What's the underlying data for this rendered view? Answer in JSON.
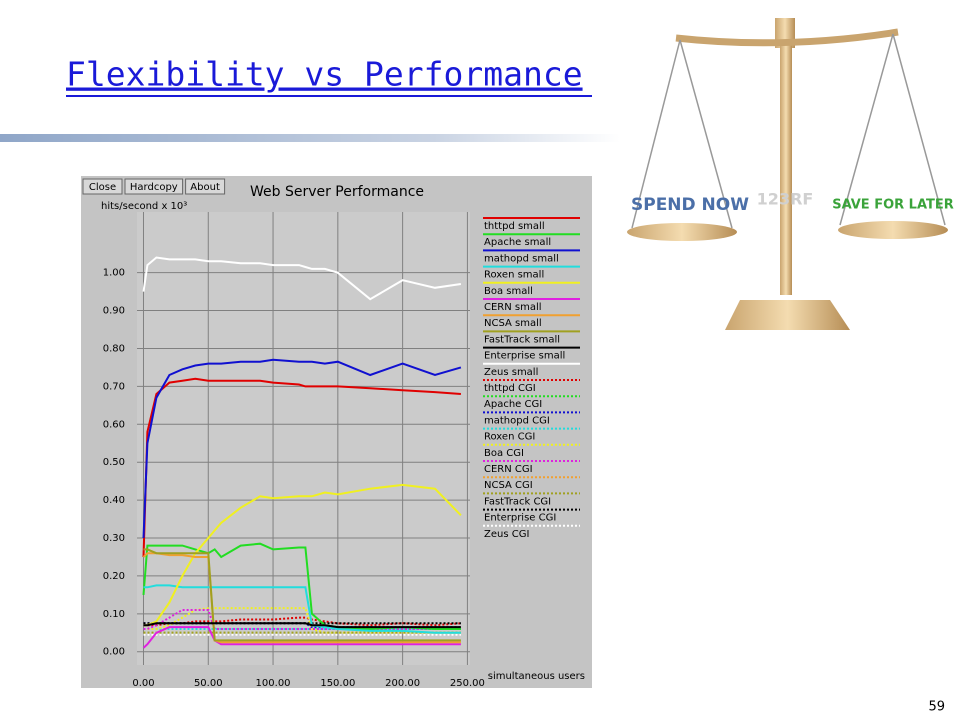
{
  "slide": {
    "title": "Flexibility vs Performance",
    "page_number": "59"
  },
  "illustration": {
    "left_text": "SPEND NOW",
    "right_text": "SAVE FOR LATER",
    "watermark": "123RF"
  },
  "buttons": [
    "Close",
    "Hardcopy",
    "About"
  ],
  "chart_data": {
    "type": "line",
    "title": "Web Server Performance",
    "ylabel": "hits/second x 10³",
    "xlabel": "simultaneous users",
    "grid": true,
    "legend": "right",
    "x": [
      0,
      3,
      10,
      20,
      30,
      40,
      50,
      55,
      60,
      75,
      90,
      100,
      120,
      125,
      130,
      140,
      150,
      175,
      200,
      225,
      245
    ],
    "xlim": [
      -5,
      252
    ],
    "ylim": [
      -0.035,
      1.16
    ],
    "xticks": [
      {
        "value": 0,
        "label": "0.00"
      },
      {
        "value": 50,
        "label": "50.00"
      },
      {
        "value": 100,
        "label": "100.00"
      },
      {
        "value": 150,
        "label": "150.00"
      },
      {
        "value": 200,
        "label": "200.00"
      },
      {
        "value": 250,
        "label": "250.00"
      }
    ],
    "yticks": [
      {
        "value": 0,
        "label": "0.00"
      },
      {
        "value": 0.1,
        "label": "0.10"
      },
      {
        "value": 0.2,
        "label": "0.20"
      },
      {
        "value": 0.3,
        "label": "0.30"
      },
      {
        "value": 0.4,
        "label": "0.40"
      },
      {
        "value": 0.5,
        "label": "0.50"
      },
      {
        "value": 0.6,
        "label": "0.60"
      },
      {
        "value": 0.7,
        "label": "0.70"
      },
      {
        "value": 0.8,
        "label": "0.80"
      },
      {
        "value": 0.9,
        "label": "0.90"
      },
      {
        "value": 1,
        "label": "1.00"
      }
    ],
    "series": [
      {
        "name": "thttpd small",
        "color": "#e00000",
        "style": "solid",
        "values": [
          0.25,
          0.58,
          0.68,
          0.71,
          0.715,
          0.72,
          0.715,
          0.715,
          0.715,
          0.715,
          0.715,
          0.71,
          0.705,
          0.7,
          0.7,
          0.7,
          0.7,
          0.695,
          0.69,
          0.685,
          0.68
        ]
      },
      {
        "name": "Apache small",
        "color": "#22dd22",
        "style": "solid",
        "values": [
          0.15,
          0.28,
          0.28,
          0.28,
          0.28,
          0.27,
          0.26,
          0.27,
          0.25,
          0.28,
          0.285,
          0.27,
          0.275,
          0.275,
          0.1,
          0.07,
          0.065,
          0.06,
          0.065,
          0.06,
          0.06
        ]
      },
      {
        "name": "mathopd small",
        "color": "#1010d0",
        "style": "solid",
        "values": [
          0.3,
          0.55,
          0.67,
          0.73,
          0.745,
          0.755,
          0.76,
          0.76,
          0.76,
          0.765,
          0.765,
          0.77,
          0.765,
          0.765,
          0.765,
          0.76,
          0.765,
          0.73,
          0.76,
          0.73,
          0.75
        ]
      },
      {
        "name": "Roxen small",
        "color": "#22dddd",
        "style": "solid",
        "values": [
          0.17,
          0.17,
          0.175,
          0.175,
          0.17,
          0.17,
          0.17,
          0.17,
          0.17,
          0.17,
          0.17,
          0.17,
          0.17,
          0.17,
          0.07,
          0.065,
          0.06,
          0.055,
          0.055,
          0.05,
          0.05
        ]
      },
      {
        "name": "Boa small",
        "color": "#f0f020",
        "style": "solid",
        "values": [
          0.07,
          0.07,
          0.08,
          0.13,
          0.2,
          0.26,
          0.3,
          0.32,
          0.34,
          0.38,
          0.41,
          0.405,
          0.41,
          0.41,
          0.41,
          0.42,
          0.415,
          0.43,
          0.44,
          0.43,
          0.36
        ]
      },
      {
        "name": "CERN small",
        "color": "#e020e0",
        "style": "solid",
        "values": [
          0.01,
          0.02,
          0.05,
          0.065,
          0.065,
          0.065,
          0.065,
          0.03,
          0.02,
          0.02,
          0.02,
          0.02,
          0.02,
          0.02,
          0.02,
          0.02,
          0.02,
          0.02,
          0.02,
          0.02,
          0.02
        ]
      },
      {
        "name": "NCSA small",
        "color": "#f0a030",
        "style": "solid",
        "values": [
          0.25,
          0.26,
          0.26,
          0.255,
          0.255,
          0.25,
          0.25,
          0.03,
          0.025,
          0.025,
          0.025,
          0.025,
          0.025,
          0.025,
          0.025,
          0.025,
          0.025,
          0.025,
          0.025,
          0.025,
          0.025
        ]
      },
      {
        "name": "FastTrack small",
        "color": "#a0a020",
        "style": "solid",
        "values": [
          0.27,
          0.27,
          0.26,
          0.26,
          0.26,
          0.26,
          0.26,
          0.03,
          0.03,
          0.03,
          0.03,
          0.03,
          0.03,
          0.03,
          0.03,
          0.03,
          0.03,
          0.03,
          0.03,
          0.03,
          0.03
        ]
      },
      {
        "name": "Enterprise small",
        "color": "#000000",
        "style": "solid",
        "values": [
          0.07,
          0.07,
          0.075,
          0.075,
          0.075,
          0.075,
          0.075,
          0.075,
          0.075,
          0.075,
          0.075,
          0.075,
          0.075,
          0.075,
          0.07,
          0.07,
          0.065,
          0.065,
          0.065,
          0.065,
          0.065
        ]
      },
      {
        "name": "Zeus small",
        "color": "#ffffff",
        "style": "solid",
        "values": [
          0.95,
          1.02,
          1.04,
          1.035,
          1.035,
          1.035,
          1.03,
          1.03,
          1.03,
          1.025,
          1.025,
          1.02,
          1.02,
          1.015,
          1.01,
          1.01,
          1.0,
          0.93,
          0.98,
          0.96,
          0.97
        ]
      },
      {
        "name": "thttpd CGI",
        "color": "#e00000",
        "style": "dotted",
        "values": [
          0.07,
          0.07,
          0.07,
          0.075,
          0.075,
          0.08,
          0.08,
          0.08,
          0.08,
          0.085,
          0.085,
          0.085,
          0.09,
          0.09,
          0.085,
          0.08,
          0.075,
          0.07,
          0.075,
          0.07,
          0.075
        ]
      },
      {
        "name": "Apache CGI",
        "color": "#22dd22",
        "style": "dotted",
        "values": [
          0.05,
          0.05,
          0.05,
          0.05,
          0.05,
          0.05,
          0.05,
          0.05,
          0.05,
          0.05,
          0.05,
          0.05,
          0.05,
          0.05,
          0.05,
          0.05,
          0.05,
          0.05,
          0.05,
          0.05,
          0.05
        ]
      },
      {
        "name": "mathopd CGI",
        "color": "#1010d0",
        "style": "dotted",
        "values": [
          0.075,
          0.075,
          0.075,
          0.075,
          0.075,
          0.075,
          0.075,
          0.075,
          0.075,
          0.075,
          0.075,
          0.075,
          0.075,
          0.075,
          0.065,
          0.065,
          0.065,
          0.065,
          0.065,
          0.065,
          0.065
        ]
      },
      {
        "name": "Roxen CGI",
        "color": "#22dddd",
        "style": "dotted",
        "values": [
          0.06,
          0.06,
          0.06,
          0.06,
          0.06,
          0.06,
          0.06,
          0.06,
          0.06,
          0.06,
          0.06,
          0.06,
          0.06,
          0.06,
          0.06,
          0.06,
          0.06,
          0.06,
          0.06,
          0.06,
          0.06
        ]
      },
      {
        "name": "Boa CGI",
        "color": "#f0f020",
        "style": "dotted",
        "values": [
          0.06,
          0.06,
          0.06,
          0.07,
          0.09,
          0.11,
          0.115,
          0.115,
          0.115,
          0.115,
          0.115,
          0.115,
          0.115,
          0.115,
          0.06,
          0.05,
          0.05,
          0.05,
          0.05,
          0.05,
          0.05
        ]
      },
      {
        "name": "CERN CGI",
        "color": "#e020e0",
        "style": "dotted",
        "values": [
          0.06,
          0.06,
          0.07,
          0.09,
          0.11,
          0.11,
          0.11,
          0.06,
          0.06,
          0.06,
          0.06,
          0.06,
          0.06,
          0.06,
          0.06,
          0.06,
          0.06,
          0.06,
          0.06,
          0.06,
          0.06
        ]
      },
      {
        "name": "NCSA CGI",
        "color": "#f0a030",
        "style": "dotted",
        "values": [
          0.05,
          0.05,
          0.05,
          0.05,
          0.05,
          0.05,
          0.05,
          0.05,
          0.05,
          0.05,
          0.05,
          0.05,
          0.05,
          0.05,
          0.05,
          0.05,
          0.05,
          0.05,
          0.05,
          0.05,
          0.05
        ]
      },
      {
        "name": "FastTrack CGI",
        "color": "#a0a020",
        "style": "dotted",
        "values": [
          0.05,
          0.05,
          0.05,
          0.05,
          0.05,
          0.05,
          0.05,
          0.05,
          0.05,
          0.05,
          0.05,
          0.05,
          0.05,
          0.05,
          0.05,
          0.05,
          0.05,
          0.05,
          0.05,
          0.05,
          0.05
        ]
      },
      {
        "name": "Enterprise CGI",
        "color": "#000000",
        "style": "dotted",
        "values": [
          0.075,
          0.075,
          0.075,
          0.075,
          0.075,
          0.075,
          0.075,
          0.075,
          0.075,
          0.075,
          0.075,
          0.075,
          0.075,
          0.075,
          0.075,
          0.075,
          0.075,
          0.075,
          0.075,
          0.075,
          0.075
        ]
      },
      {
        "name": "Zeus CGI",
        "color": "#ffffff",
        "style": "dotted",
        "values": [
          0.045,
          0.045,
          0.045,
          0.045,
          0.045,
          0.045,
          0.045,
          0.045,
          0.045,
          0.045,
          0.045,
          0.045,
          0.045,
          0.045,
          0.045,
          0.045,
          0.045,
          0.045,
          0.045,
          0.045,
          0.045
        ]
      }
    ]
  }
}
